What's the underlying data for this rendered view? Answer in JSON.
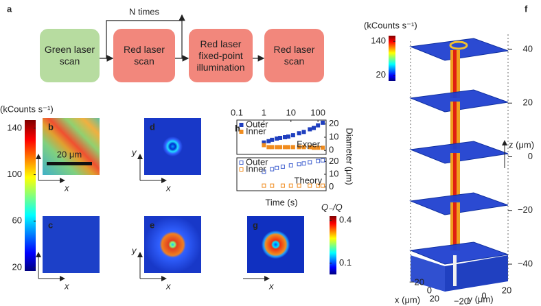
{
  "panel_labels": [
    "a",
    "b",
    "c",
    "d",
    "e",
    "f",
    "g",
    "h"
  ],
  "flowchart": {
    "steps": [
      "Green laser scan",
      "Red laser scan",
      "Red laser fixed-point illumination",
      "Red laser scan"
    ],
    "loop_label": "N times"
  },
  "colorbar_left": {
    "label": "(kCounts s⁻¹)",
    "lim": [
      17,
      147
    ],
    "ticks": [
      140,
      100,
      60,
      20
    ]
  },
  "scale_bar": "20 μm",
  "axis_letters": {
    "x": "x",
    "y": "y"
  },
  "colorbar_g": {
    "label": "Q₋/Q",
    "lim": [
      0.02,
      0.43
    ],
    "ticks": [
      0.4,
      0.1
    ]
  },
  "colorbar_f": {
    "label": "(kCounts s⁻¹)",
    "lim": [
      0,
      160
    ],
    "ticks": [
      140,
      20
    ]
  },
  "panel_f": {
    "z_label": "z (μm)",
    "zlim": [
      -40,
      40
    ],
    "zticks": [
      40,
      20,
      0,
      {
        "value": -20,
        "label": "−20"
      },
      {
        "value": -40,
        "label": "−40"
      }
    ],
    "x_label": "x (μm)",
    "xlim": [
      -20,
      20
    ],
    "xticks": [
      {
        "value": -20,
        "label": "−20"
      },
      0,
      20
    ],
    "y_label": "y (μm)",
    "ylim": [
      -20,
      20
    ],
    "yticks": [
      {
        "value": -20,
        "label": "−20"
      },
      0,
      20
    ]
  },
  "chart_data": [
    {
      "type": "scatter",
      "xscale": "log",
      "annotation": "Exper.",
      "y_label": "Diameter (μm)",
      "xlim": [
        0.1,
        200
      ],
      "xticks": [
        0.1,
        1,
        10,
        100
      ],
      "ylim": [
        -3,
        23
      ],
      "yticks": [
        0,
        10,
        20
      ],
      "series": [
        {
          "name": "Outer",
          "color": "#1f3fbf",
          "marker": "filled",
          "x": [
            1,
            1.5,
            2,
            3,
            4,
            6,
            8,
            12,
            20,
            30,
            50,
            70,
            100,
            150
          ],
          "values": [
            6,
            7,
            8,
            9,
            9.5,
            10,
            10.5,
            11.5,
            13,
            14,
            16,
            17,
            19,
            21
          ]
        },
        {
          "name": "Inner",
          "color": "#f08c1e",
          "marker": "filled",
          "x": [
            1,
            1.5,
            2,
            3,
            4,
            6,
            8,
            12,
            20,
            30,
            50,
            70,
            100,
            150
          ],
          "values": [
            4,
            2.5,
            2.5,
            2.5,
            2.5,
            2.5,
            2.5,
            2.5,
            2.5,
            2.5,
            2.5,
            2,
            2,
            2
          ]
        }
      ]
    },
    {
      "type": "scatter",
      "xscale": "log",
      "annotation": "Theory",
      "x_label": "Time (s)",
      "xlim": [
        0.1,
        200
      ],
      "ylim": [
        -3,
        23
      ],
      "yticks": [
        0,
        10,
        20
      ],
      "series": [
        {
          "name": "Outer",
          "color": "#3f5fcf",
          "marker": "open",
          "x": [
            1,
            2,
            3,
            5,
            10,
            20,
            30,
            50,
            100,
            150
          ],
          "values": [
            12,
            14,
            15,
            16,
            17,
            18,
            18.5,
            19.5,
            20.5,
            21
          ]
        },
        {
          "name": "Inner",
          "color": "#f08c1e",
          "marker": "open",
          "x": [
            1,
            2,
            5,
            10,
            20,
            50,
            100,
            150
          ],
          "values": [
            1,
            1,
            1,
            1,
            1,
            1,
            1,
            1
          ]
        }
      ]
    }
  ]
}
